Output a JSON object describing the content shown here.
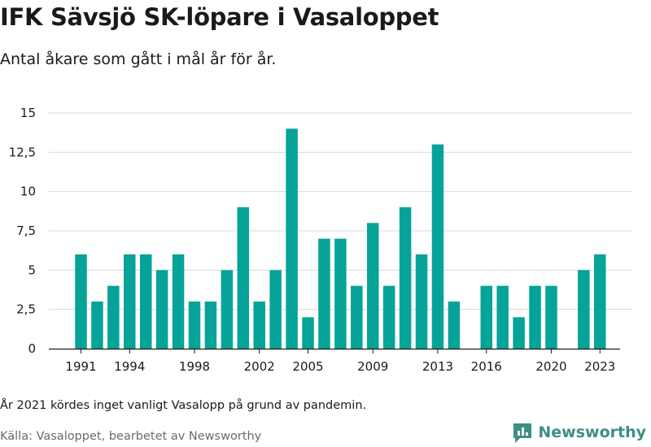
{
  "title": "IFK Sävsjö SK-löpare i Vasaloppet",
  "subtitle": "Antal åkare som gått i mål år för år.",
  "note": "År 2021 kördes inget vanligt Vasalopp på grund av pandemin.",
  "source": "Källa: Vasaloppet, bearbetet av Newsworthy",
  "brand": {
    "name": "Newsworthy",
    "icon": "bar-chart-logo-icon"
  },
  "colors": {
    "bar": "#06a399",
    "grid": "#d9d9d9",
    "brand": "#3d8f84"
  },
  "chart_data": {
    "type": "bar",
    "title": "IFK Sävsjö SK-löpare i Vasaloppet",
    "categories": [
      1991,
      1992,
      1993,
      1994,
      1995,
      1996,
      1997,
      1998,
      1999,
      2000,
      2001,
      2002,
      2003,
      2004,
      2005,
      2006,
      2007,
      2008,
      2009,
      2010,
      2011,
      2012,
      2013,
      2014,
      2015,
      2016,
      2017,
      2018,
      2019,
      2020,
      2021,
      2022,
      2023
    ],
    "values": [
      6,
      3,
      4,
      6,
      6,
      5,
      6,
      3,
      3,
      5,
      9,
      3,
      5,
      14,
      2,
      7,
      7,
      4,
      8,
      4,
      9,
      6,
      13,
      3,
      null,
      4,
      4,
      2,
      4,
      4,
      null,
      5,
      6
    ],
    "ylim": [
      0,
      15
    ],
    "y_ticks": [
      0,
      2.5,
      5,
      7.5,
      10,
      12.5,
      15
    ],
    "y_tick_labels": [
      "0",
      "2,5",
      "5",
      "7,5",
      "10",
      "12,5",
      "15"
    ],
    "x_tick_labels": [
      "1991",
      "1994",
      "1998",
      "2002",
      "2005",
      "2009",
      "2013",
      "2016",
      "2020",
      "2023"
    ],
    "grid": true,
    "legend": "none"
  }
}
